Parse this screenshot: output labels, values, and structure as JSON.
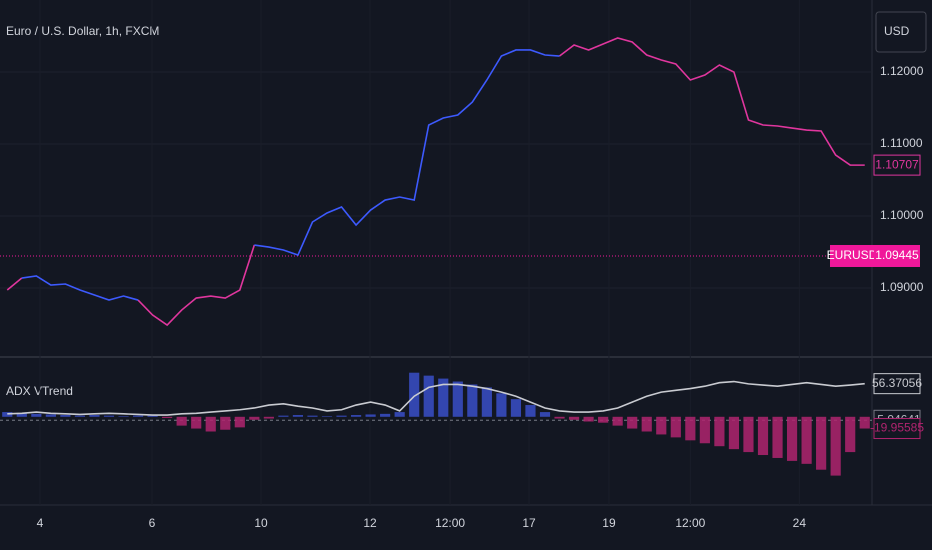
{
  "chart_data": [
    {
      "type": "line",
      "title": "Euro / U.S. Dollar, 1h, FXCM",
      "currency": "USD",
      "xlim": [
        -0.5,
        59.5
      ],
      "xticks": [
        {
          "value": 2.25,
          "label": "4"
        },
        {
          "value": 9.96,
          "label": "6"
        },
        {
          "value": 17.46,
          "label": "10"
        },
        {
          "value": 24.96,
          "label": "12"
        },
        {
          "value": 30.47,
          "label": "12:00"
        },
        {
          "value": 35.9,
          "label": "17"
        },
        {
          "value": 41.4,
          "label": "19"
        },
        {
          "value": 47.0,
          "label": "12:00"
        },
        {
          "value": 54.5,
          "label": "24"
        }
      ],
      "ylim": [
        1.0807,
        1.13
      ],
      "yticks": [
        {
          "value": 1.09,
          "label": "1.09000"
        },
        {
          "value": 1.1,
          "label": "1.10000"
        },
        {
          "value": 1.11,
          "label": "1.11000"
        },
        {
          "value": 1.12,
          "label": "1.12000"
        }
      ],
      "reference": {
        "label": "EURUSD",
        "value": 1.09445,
        "color": "#f0189a"
      },
      "series": [
        {
          "color": "#e0369e",
          "values": [
            1.08972,
            1.09139,
            null,
            null,
            null,
            null,
            null,
            null,
            null,
            1.08833,
            1.08625,
            1.08486,
            1.08694,
            1.08861,
            1.08889,
            1.08861,
            1.08972,
            1.09597,
            null,
            null,
            null,
            null,
            null,
            null,
            null,
            null,
            null,
            null,
            null,
            null,
            null,
            null,
            null,
            null,
            null,
            null,
            null,
            null,
            1.12222,
            1.12375,
            1.12306,
            1.12389,
            1.12472,
            1.12417,
            1.12236,
            1.12167,
            1.12111,
            1.11889,
            1.11958,
            1.12097,
            1.12,
            1.11333,
            1.11264,
            1.1125,
            1.11222,
            1.11194,
            1.11181,
            1.10847,
            1.10708,
            1.10707
          ]
        },
        {
          "color": "#3d5afe",
          "values": [
            null,
            1.09139,
            1.09167,
            1.09042,
            1.09056,
            1.08972,
            1.08903,
            1.08833,
            1.08889,
            1.08833,
            null,
            null,
            null,
            null,
            null,
            null,
            null,
            1.09597,
            1.09569,
            1.09528,
            1.09458,
            1.09917,
            1.10042,
            1.10125,
            1.09875,
            1.10083,
            1.10222,
            1.10264,
            1.10222,
            1.11264,
            1.11361,
            1.11403,
            1.11583,
            1.11889,
            1.12222,
            1.12306,
            1.12306,
            1.12236,
            1.12222,
            null,
            null,
            null,
            null,
            null,
            null,
            null,
            null,
            null,
            null,
            null,
            null,
            null,
            null,
            null,
            null,
            null,
            null,
            null,
            null,
            null
          ]
        }
      ]
    },
    {
      "type": "bar",
      "title": "ADX VTrend",
      "xlim": [
        -0.5,
        59.5
      ],
      "ylim": [
        -150,
        100
      ],
      "level": -5.94641,
      "series": [
        {
          "positive_color": "#3a4fc8",
          "negative_color": "#b0246f",
          "values": [
            8,
            6,
            5,
            4,
            3,
            2,
            3,
            2,
            1,
            2,
            2,
            -2,
            -15,
            -20,
            -25,
            -22,
            -18,
            -5,
            -3,
            2,
            3,
            2,
            1,
            2,
            3,
            4,
            5,
            8,
            75,
            70,
            65,
            60,
            55,
            50,
            40,
            30,
            20,
            8,
            -3,
            -5,
            -8,
            -10,
            -15,
            -20,
            -25,
            -30,
            -35,
            -40,
            -45,
            -50,
            -55,
            -60,
            -65,
            -70,
            -75,
            -80,
            -90,
            -100,
            -60,
            -19.95585
          ]
        },
        {
          "type": "line",
          "color": "#c9cbd1",
          "values": [
            5,
            6,
            8,
            6,
            5,
            4,
            5,
            6,
            5,
            4,
            3,
            3,
            5,
            6,
            8,
            10,
            12,
            15,
            20,
            22,
            18,
            15,
            10,
            12,
            20,
            25,
            20,
            10,
            35,
            50,
            55,
            55,
            52,
            48,
            42,
            35,
            25,
            15,
            10,
            8,
            8,
            10,
            15,
            25,
            35,
            42,
            45,
            48,
            52,
            58,
            60,
            56,
            54,
            52,
            55,
            58,
            55,
            52,
            54,
            56.37056
          ]
        }
      ]
    }
  ]
}
